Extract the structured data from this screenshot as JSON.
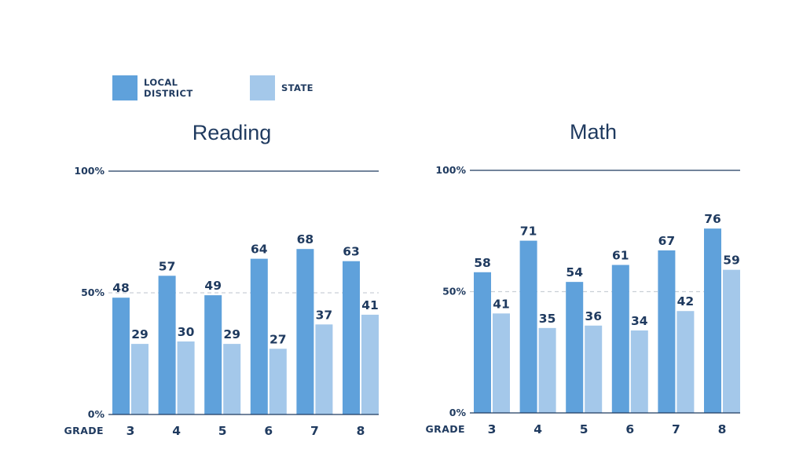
{
  "colors": {
    "local": "#5fa1db",
    "state": "#a4c8ea",
    "text": "#1f3a5f",
    "axis": "#1f3a5f",
    "midline": "#c9cfd6"
  },
  "legend": {
    "local_label": "LOCAL\nDISTRICT",
    "state_label": "STATE"
  },
  "chart_data": [
    {
      "type": "bar",
      "title": "Reading",
      "xlabel": "GRADE",
      "categories": [
        "3",
        "4",
        "5",
        "6",
        "7",
        "8"
      ],
      "yticks": [
        "0%",
        "50%",
        "100%"
      ],
      "ylim": [
        0,
        100
      ],
      "series": [
        {
          "name": "LOCAL DISTRICT",
          "values": [
            48,
            57,
            49,
            64,
            68,
            63
          ]
        },
        {
          "name": "STATE",
          "values": [
            29,
            30,
            29,
            27,
            37,
            41
          ]
        }
      ]
    },
    {
      "type": "bar",
      "title": "Math",
      "xlabel": "GRADE",
      "categories": [
        "3",
        "4",
        "5",
        "6",
        "7",
        "8"
      ],
      "yticks": [
        "0%",
        "50%",
        "100%"
      ],
      "ylim": [
        0,
        100
      ],
      "series": [
        {
          "name": "LOCAL DISTRICT",
          "values": [
            58,
            71,
            54,
            61,
            67,
            76
          ]
        },
        {
          "name": "STATE",
          "values": [
            41,
            35,
            36,
            34,
            42,
            59
          ]
        }
      ]
    }
  ]
}
